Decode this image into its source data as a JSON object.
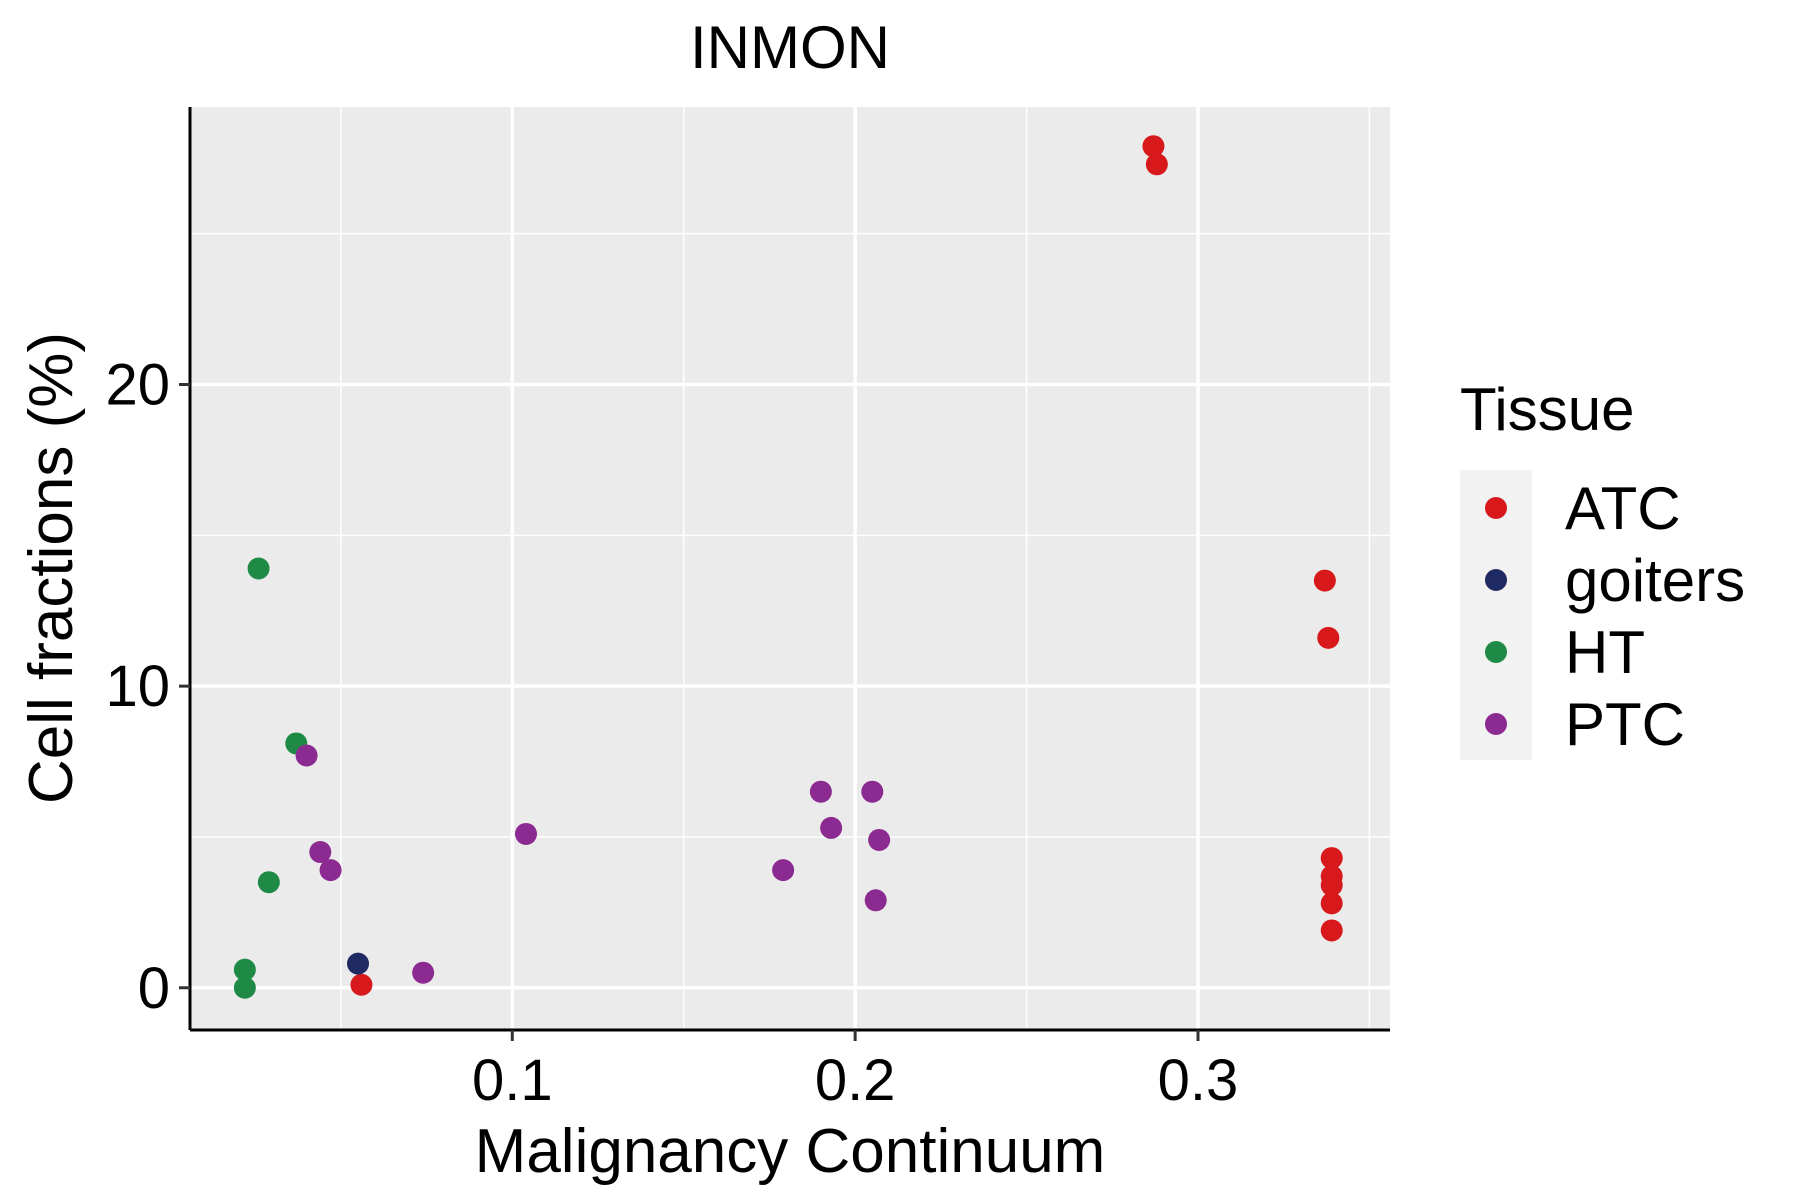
{
  "chart_data": {
    "type": "scatter",
    "title": "INMON",
    "xlabel": "Malignancy Continuum",
    "ylabel": "Cell fractions (%)",
    "xlim": [
      0.006,
      0.356
    ],
    "ylim": [
      -1.4,
      29.2
    ],
    "x_ticks": [
      {
        "value": 0.1,
        "label": "0.1"
      },
      {
        "value": 0.2,
        "label": "0.2"
      },
      {
        "value": 0.3,
        "label": "0.3"
      }
    ],
    "x_minor_ticks": [
      0.05,
      0.15,
      0.25,
      0.35
    ],
    "y_ticks": [
      {
        "value": 0,
        "label": "0"
      },
      {
        "value": 10,
        "label": "10"
      },
      {
        "value": 20,
        "label": "20"
      }
    ],
    "y_minor_ticks": [
      5,
      15,
      25
    ],
    "grid": true,
    "legend": {
      "title": "Tissue",
      "position": "right",
      "entries": [
        {
          "name": "ATC",
          "color": "#d7191c"
        },
        {
          "name": "goiters",
          "color": "#1f2a63"
        },
        {
          "name": "HT",
          "color": "#1f8a45"
        },
        {
          "name": "PTC",
          "color": "#8b2a91"
        }
      ]
    },
    "series": [
      {
        "name": "ATC",
        "color": "#d7191c",
        "points": [
          {
            "x": 0.287,
            "y": 27.9
          },
          {
            "x": 0.288,
            "y": 27.3
          },
          {
            "x": 0.337,
            "y": 13.5
          },
          {
            "x": 0.338,
            "y": 11.6
          },
          {
            "x": 0.339,
            "y": 4.3
          },
          {
            "x": 0.339,
            "y": 3.7
          },
          {
            "x": 0.339,
            "y": 3.4
          },
          {
            "x": 0.339,
            "y": 2.8
          },
          {
            "x": 0.339,
            "y": 1.9
          },
          {
            "x": 0.056,
            "y": 0.1
          }
        ]
      },
      {
        "name": "goiters",
        "color": "#1f2a63",
        "points": [
          {
            "x": 0.055,
            "y": 0.8
          }
        ]
      },
      {
        "name": "HT",
        "color": "#1f8a45",
        "points": [
          {
            "x": 0.026,
            "y": 13.9
          },
          {
            "x": 0.037,
            "y": 8.1
          },
          {
            "x": 0.029,
            "y": 3.5
          },
          {
            "x": 0.022,
            "y": 0.6
          },
          {
            "x": 0.022,
            "y": 0.0
          }
        ]
      },
      {
        "name": "PTC",
        "color": "#8b2a91",
        "points": [
          {
            "x": 0.04,
            "y": 7.7
          },
          {
            "x": 0.044,
            "y": 4.5
          },
          {
            "x": 0.047,
            "y": 3.9
          },
          {
            "x": 0.074,
            "y": 0.5
          },
          {
            "x": 0.104,
            "y": 5.1
          },
          {
            "x": 0.179,
            "y": 3.9
          },
          {
            "x": 0.19,
            "y": 6.5
          },
          {
            "x": 0.193,
            "y": 5.3
          },
          {
            "x": 0.205,
            "y": 6.5
          },
          {
            "x": 0.207,
            "y": 4.9
          },
          {
            "x": 0.206,
            "y": 2.9
          }
        ]
      }
    ]
  }
}
